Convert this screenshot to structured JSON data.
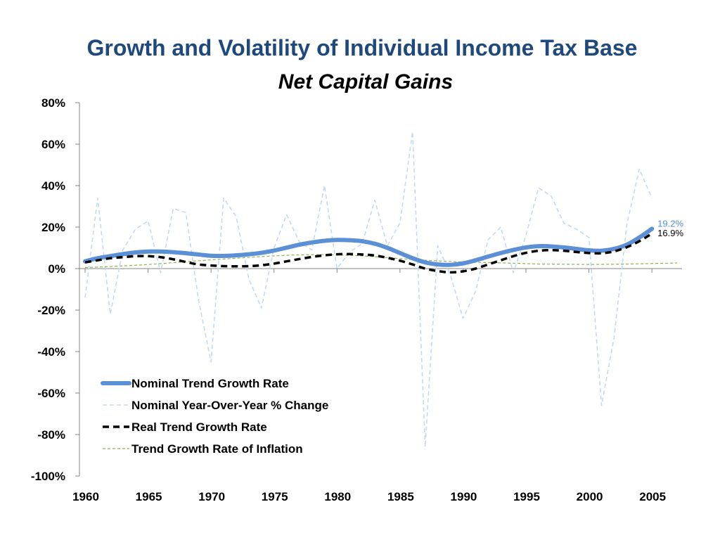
{
  "chart_data": {
    "type": "line",
    "title": "Growth and Volatility of Individual Income Tax Base",
    "subtitle": "Net Capital Gains",
    "xlabel": "",
    "ylabel": "",
    "xlim": [
      1960,
      2007
    ],
    "ylim": [
      -100,
      80
    ],
    "x_ticks": [
      1960,
      1965,
      1970,
      1975,
      1980,
      1985,
      1990,
      1995,
      2000,
      2005
    ],
    "x_tick_labels": [
      "1960",
      "1965",
      "1970",
      "1975",
      "1980",
      "1985",
      "1990",
      "1995",
      "2000",
      "2005"
    ],
    "y_ticks": [
      80,
      60,
      40,
      20,
      0,
      -20,
      -40,
      -60,
      -80,
      -100
    ],
    "y_tick_labels": [
      "80%",
      "60%",
      "40%",
      "20%",
      "0%",
      "-20%",
      "-40%",
      "-60%",
      "-80%",
      "-100%"
    ],
    "grid": false,
    "legend_position": "bottom-left",
    "annotations": [
      {
        "text": "19.2%",
        "series": "Nominal Trend Growth Rate",
        "color": "#4f8fdc"
      },
      {
        "text": "16.9%",
        "series": "Real Trend Growth Rate",
        "color": "#000000"
      }
    ],
    "series": [
      {
        "name": "Nominal Trend Growth Rate",
        "color": "#5b8fd6",
        "style": "solid-thick",
        "x": [
          1960,
          1961,
          1962,
          1963,
          1964,
          1965,
          1966,
          1967,
          1968,
          1969,
          1970,
          1971,
          1972,
          1973,
          1974,
          1975,
          1976,
          1977,
          1978,
          1979,
          1980,
          1981,
          1982,
          1983,
          1984,
          1985,
          1986,
          1987,
          1988,
          1989,
          1990,
          1991,
          1992,
          1993,
          1994,
          1995,
          1996,
          1997,
          1998,
          1999,
          2000,
          2001,
          2002,
          2003,
          2004,
          2005
        ],
        "y": [
          3.5,
          5,
          6,
          7,
          7.8,
          8.2,
          8.2,
          7.9,
          7.4,
          6.8,
          6.2,
          6.1,
          6.4,
          6.9,
          7.6,
          8.7,
          10.1,
          11.5,
          12.6,
          13.4,
          13.8,
          13.7,
          13.2,
          12,
          10,
          7.5,
          5,
          3,
          2,
          1.8,
          2.5,
          4,
          5.8,
          7.5,
          9,
          10.2,
          10.8,
          10.7,
          10.2,
          9.5,
          8.8,
          8.6,
          9.5,
          11.5,
          15,
          19.2
        ]
      },
      {
        "name": "Nominal Year-Over-Year % Change",
        "color": "#c5d9f1",
        "style": "dashed",
        "x": [
          1960,
          1961,
          1962,
          1963,
          1964,
          1965,
          1966,
          1967,
          1968,
          1969,
          1970,
          1971,
          1972,
          1973,
          1974,
          1975,
          1976,
          1977,
          1978,
          1979,
          1980,
          1981,
          1982,
          1983,
          1984,
          1985,
          1986,
          1987,
          1988,
          1989,
          1990,
          1991,
          1992,
          1993,
          1994,
          1995,
          1996,
          1997,
          1998,
          1999,
          2000,
          2001,
          2002,
          2003,
          2004,
          2005
        ],
        "y": [
          -14,
          34,
          -22,
          9,
          19,
          23,
          -2,
          29,
          27,
          -15,
          -45,
          34,
          25,
          -5,
          -19,
          10,
          26,
          13,
          9,
          40,
          0,
          8,
          12,
          33,
          11,
          22,
          66,
          -86,
          11,
          -3,
          -24,
          -11,
          14,
          20,
          -2,
          16,
          39,
          35,
          22,
          19,
          15,
          -66,
          -33,
          21,
          48,
          34
        ]
      },
      {
        "name": "Real Trend Growth Rate",
        "color": "#000000",
        "style": "dashed-thick",
        "x": [
          1960,
          1961,
          1962,
          1963,
          1964,
          1965,
          1966,
          1967,
          1968,
          1969,
          1970,
          1971,
          1972,
          1973,
          1974,
          1975,
          1976,
          1977,
          1978,
          1979,
          1980,
          1981,
          1982,
          1983,
          1984,
          1985,
          1986,
          1987,
          1988,
          1989,
          1990,
          1991,
          1992,
          1993,
          1994,
          1995,
          1996,
          1997,
          1998,
          1999,
          2000,
          2001,
          2002,
          2003,
          2004,
          2005
        ],
        "y": [
          3,
          4,
          5,
          5.5,
          6,
          6,
          5.5,
          4.5,
          3.2,
          2,
          1.5,
          1.2,
          1.1,
          1.2,
          1.6,
          2.4,
          3.5,
          4.6,
          5.6,
          6.4,
          6.9,
          7,
          6.8,
          6.3,
          5.2,
          3.8,
          2,
          0,
          -1.2,
          -1.8,
          -1.3,
          0,
          2,
          4,
          6,
          7.6,
          8.6,
          8.9,
          8.6,
          8,
          7.5,
          7.4,
          8.3,
          10.3,
          13.2,
          16.9
        ]
      },
      {
        "name": "Trend Growth Rate of Inflation",
        "color": "#8db44a",
        "style": "dashed-thin",
        "x": [
          1960,
          1962,
          1964,
          1966,
          1968,
          1970,
          1972,
          1974,
          1976,
          1978,
          1980,
          1982,
          1984,
          1986,
          1988,
          1990,
          1992,
          1994,
          1996,
          1998,
          2000,
          2002,
          2004,
          2007
        ],
        "y": [
          0.5,
          1,
          1.6,
          2.4,
          3.3,
          4.2,
          5,
          5.8,
          6.4,
          6.7,
          6.6,
          6.1,
          5.3,
          4.4,
          3.7,
          3.2,
          2.9,
          2.6,
          2.2,
          2.1,
          2,
          2.1,
          2.3,
          2.7
        ]
      }
    ]
  }
}
